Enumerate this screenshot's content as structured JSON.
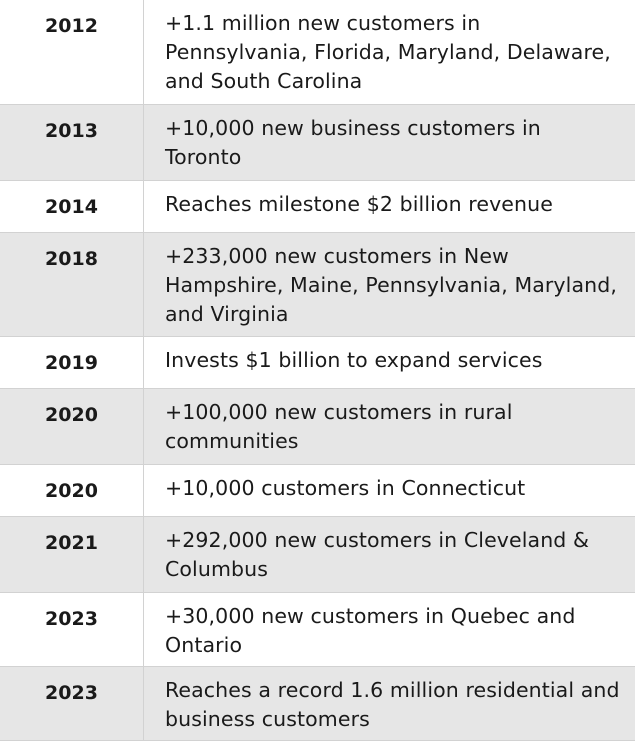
{
  "timeline": {
    "rows": [
      {
        "year": "2012",
        "text": "+1.1 million new customers in Pennsylvania, Florida, Maryland, Delaware, and South Carolina"
      },
      {
        "year": "2013",
        "text": "+10,000 new business customers in Toronto"
      },
      {
        "year": "2014",
        "text": "Reaches milestone $2 billion revenue"
      },
      {
        "year": "2018",
        "text": "+233,000 new customers in New Hampshire, Maine, Pennsylvania, Maryland, and Virginia"
      },
      {
        "year": "2019",
        "text": "Invests $1 billion to expand services"
      },
      {
        "year": "2020",
        "text": "+100,000 new customers in rural communities"
      },
      {
        "year": "2020",
        "text": "+10,000 customers in Connecticut"
      },
      {
        "year": "2021",
        "text": "+292,000 new customers in Cleveland & Columbus"
      },
      {
        "year": "2023",
        "text": "+30,000 new customers in Quebec and Ontario"
      },
      {
        "year": "2023",
        "text": "Reaches a record 1.6 million residential and business customers"
      }
    ]
  }
}
